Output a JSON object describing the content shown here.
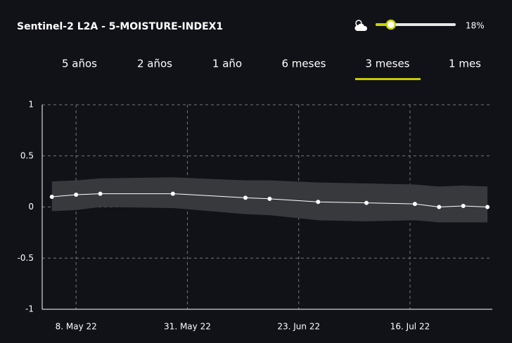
{
  "header": {
    "title": "Sentinel-2 L2A - 5-MOISTURE-INDEX1",
    "cloud_slider": {
      "value": 18,
      "label": "18%",
      "range": [
        0,
        100
      ]
    }
  },
  "tabs": {
    "items": [
      "5 años",
      "2 años",
      "1 año",
      "6 meses",
      "3 meses",
      "1 mes"
    ],
    "active": 4
  },
  "chart_data": {
    "type": "line",
    "x": [
      "2022-05-03",
      "2022-05-08",
      "2022-05-13",
      "2022-05-28",
      "2022-06-12",
      "2022-06-17",
      "2022-06-27",
      "2022-07-07",
      "2022-07-17",
      "2022-07-22",
      "2022-07-27",
      "2022-08-01"
    ],
    "series": [
      {
        "color": "#ffffff",
        "values": [
          0.1,
          0.12,
          0.13,
          0.13,
          0.09,
          0.08,
          0.05,
          0.04,
          0.03,
          0.0,
          0.01,
          0.0
        ]
      }
    ],
    "band": {
      "color": "#38393d",
      "upper": [
        0.25,
        0.26,
        0.28,
        0.29,
        0.26,
        0.26,
        0.24,
        0.23,
        0.22,
        0.2,
        0.21,
        0.2
      ],
      "lower": [
        -0.04,
        -0.03,
        0.0,
        -0.01,
        -0.07,
        -0.08,
        -0.13,
        -0.14,
        -0.13,
        -0.15,
        -0.15,
        -0.15
      ]
    },
    "xlim": [
      "2022-05-01",
      "2022-08-02"
    ],
    "xticks": [
      {
        "value": "2022-05-08",
        "label": "8. May 22"
      },
      {
        "value": "2022-05-31",
        "label": "31. May 22"
      },
      {
        "value": "2022-06-23",
        "label": "23. Jun 22"
      },
      {
        "value": "2022-07-16",
        "label": "16. Jul 22"
      }
    ],
    "ylim": [
      -1,
      1
    ],
    "yticks": [
      1,
      0.5,
      0,
      -0.5,
      -1
    ],
    "grid": true
  }
}
